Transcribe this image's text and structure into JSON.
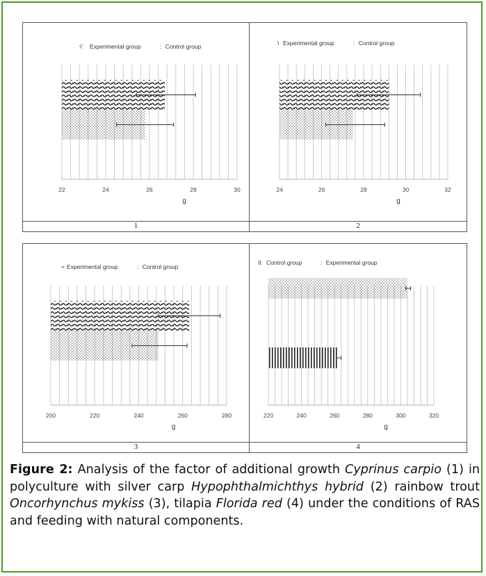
{
  "colors": {
    "border": "#4c9a2a",
    "bar": "#222222",
    "grid": "#bdbdbd",
    "axis_text": "#444444"
  },
  "chart_data": [
    {
      "panel_label": "1",
      "type": "bar",
      "orientation": "horizontal",
      "xlabel": "g",
      "xlim": [
        22,
        30
      ],
      "xticks": [
        "22",
        "24",
        "26",
        "28",
        "30"
      ],
      "grid": true,
      "legend_position": "top",
      "legend": [
        {
          "marker": "ᐧ\\'",
          "label": "Experimental group",
          "pattern": "wave"
        },
        {
          "marker": ":",
          "label": "Control group",
          "pattern": "dots"
        }
      ],
      "series": [
        {
          "name": "Experimental group",
          "pattern": "wave",
          "value": 26.7,
          "error_low": 25.4,
          "error_high": 28.1
        },
        {
          "name": "Control group",
          "pattern": "dots",
          "value": 25.8,
          "error_low": 24.5,
          "error_high": 27.1
        }
      ]
    },
    {
      "panel_label": "2",
      "type": "bar",
      "orientation": "horizontal",
      "xlabel": "g",
      "xlim": [
        24,
        32
      ],
      "xticks": [
        "24",
        "26",
        "28",
        "30",
        "32"
      ],
      "grid": true,
      "legend_position": "top",
      "legend": [
        {
          "marker": "\\",
          "label": "Experimental group",
          "pattern": "wave"
        },
        {
          "marker": ":",
          "label": "Control group",
          "pattern": "dots"
        }
      ],
      "series": [
        {
          "name": "Experimental group",
          "pattern": "wave",
          "value": 29.2,
          "error_low": 27.7,
          "error_high": 30.7
        },
        {
          "name": "Control group",
          "pattern": "dots",
          "value": 27.5,
          "error_low": 26.2,
          "error_high": 29.0
        }
      ]
    },
    {
      "panel_label": "3",
      "type": "bar",
      "orientation": "horizontal",
      "xlabel": "g",
      "xlim": [
        200,
        280
      ],
      "xticks": [
        "200",
        "220",
        "240",
        "260",
        "280"
      ],
      "grid": true,
      "legend_position": "top",
      "legend": [
        {
          "marker": "≈",
          "label": "Experimental group",
          "pattern": "wave"
        },
        {
          "marker": ":",
          "label": "Control group",
          "pattern": "dots"
        }
      ],
      "series": [
        {
          "name": "Experimental group",
          "pattern": "wave",
          "value": 263,
          "error_low": 249,
          "error_high": 277
        },
        {
          "name": "Control group",
          "pattern": "dots",
          "value": 249,
          "error_low": 237,
          "error_high": 262
        }
      ]
    },
    {
      "panel_label": "4",
      "type": "bar",
      "orientation": "horizontal",
      "xlabel": "g",
      "xlim": [
        220,
        320
      ],
      "xticks": [
        "220",
        "240",
        "260",
        "280",
        "300",
        "320"
      ],
      "grid": true,
      "legend_position": "top",
      "legend": [
        {
          "marker": "II",
          "label": "Control group",
          "pattern": "vlines"
        },
        {
          "marker": ":",
          "label": "Experimental group",
          "pattern": "dots"
        }
      ],
      "series": [
        {
          "name": "Experimental group",
          "pattern": "dots",
          "value": 304,
          "error_low": 303,
          "error_high": 306
        },
        {
          "name": "Control group",
          "pattern": "vlines",
          "value": 262,
          "error_low": 261,
          "error_high": 264
        }
      ]
    }
  ],
  "caption": {
    "label": "Figure 2:",
    "t1": " Analysis of the factor of additional growth ",
    "sp1": "Cyprinus carpio",
    "t2": " (1) in polyculture with silver carp ",
    "sp2": "Hypophthalmichthys hybrid",
    "t3": " (2) rainbow trout ",
    "sp3": "Oncorhynchus mykiss",
    "t4": " (3), tilapia ",
    "sp4": "Florida red",
    "t5": " (4) under the conditions of RAS and feeding with natural components."
  }
}
